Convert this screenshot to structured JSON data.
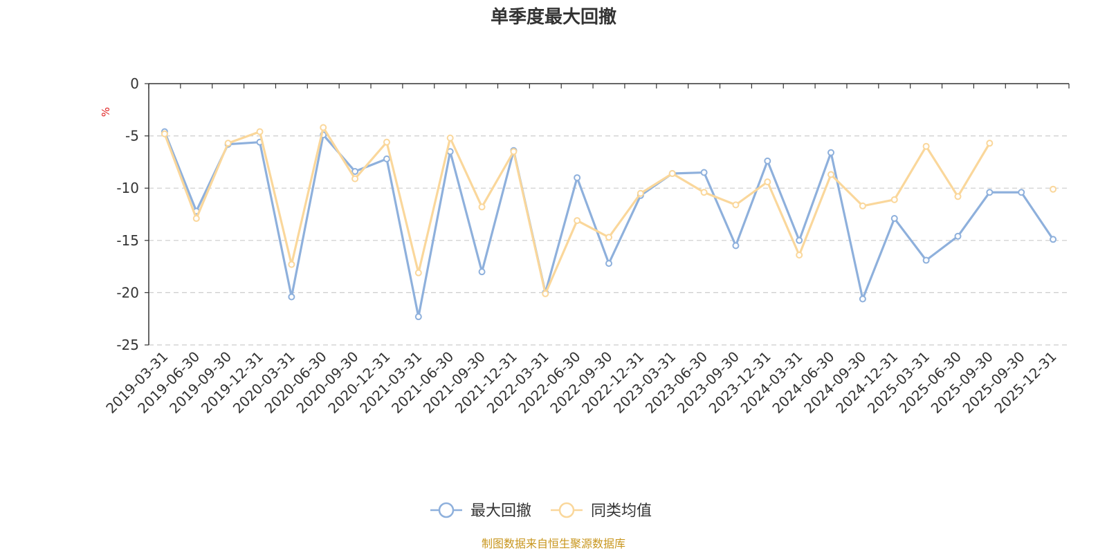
{
  "chart_data": {
    "type": "line",
    "title": "单季度最大回撤",
    "ylabel": "%",
    "ylim": [
      -25,
      0
    ],
    "yticks": [
      "0",
      "-5",
      "-10",
      "-15",
      "-20",
      "-25"
    ],
    "ytick_values": [
      0,
      -5,
      -10,
      -15,
      -20,
      -25
    ],
    "grid": true,
    "legend_position": "bottom",
    "categories": [
      "2019-03-31",
      "2019-06-30",
      "2019-09-30",
      "2019-12-31",
      "2020-03-31",
      "2020-06-30",
      "2020-09-30",
      "2020-12-31",
      "2021-03-31",
      "2021-06-30",
      "2021-09-30",
      "2021-12-31",
      "2022-03-31",
      "2022-06-30",
      "2022-09-30",
      "2022-12-31",
      "2023-03-31",
      "2023-06-30",
      "2023-09-30",
      "2023-12-31",
      "2024-03-31",
      "2024-06-30",
      "2024-09-30",
      "2024-12-31",
      "2025-03-31",
      "2025-06-30",
      "2025-09-30",
      "2025-09-30",
      "2025-12-31"
    ],
    "series": [
      {
        "name": "最大回撤",
        "color": "#8eb0dc",
        "values": [
          -4.6,
          -12.2,
          -5.8,
          -5.6,
          -20.4,
          -4.9,
          -8.4,
          -7.2,
          -22.3,
          -6.5,
          -18.0,
          -6.4,
          -20.0,
          -9.0,
          -17.2,
          -10.7,
          -8.6,
          -8.5,
          -15.5,
          -7.4,
          -15.0,
          -6.6,
          -20.6,
          -12.9,
          -16.9,
          -14.6,
          -10.4,
          -10.4,
          -14.9
        ]
      },
      {
        "name": "同类均值",
        "color": "#fad79b",
        "values": [
          -4.8,
          -12.9,
          -5.7,
          -4.6,
          -17.3,
          -4.2,
          -9.1,
          -5.6,
          -18.1,
          -5.2,
          -11.8,
          -6.5,
          -20.1,
          -13.1,
          -14.7,
          -10.5,
          -8.6,
          -10.4,
          -11.6,
          -9.4,
          -16.4,
          -8.7,
          -11.7,
          -11.1,
          -6.0,
          -10.8,
          -5.7,
          null,
          -10.1
        ]
      }
    ]
  },
  "footer": {
    "source": "制图数据来自恒生聚源数据库"
  }
}
